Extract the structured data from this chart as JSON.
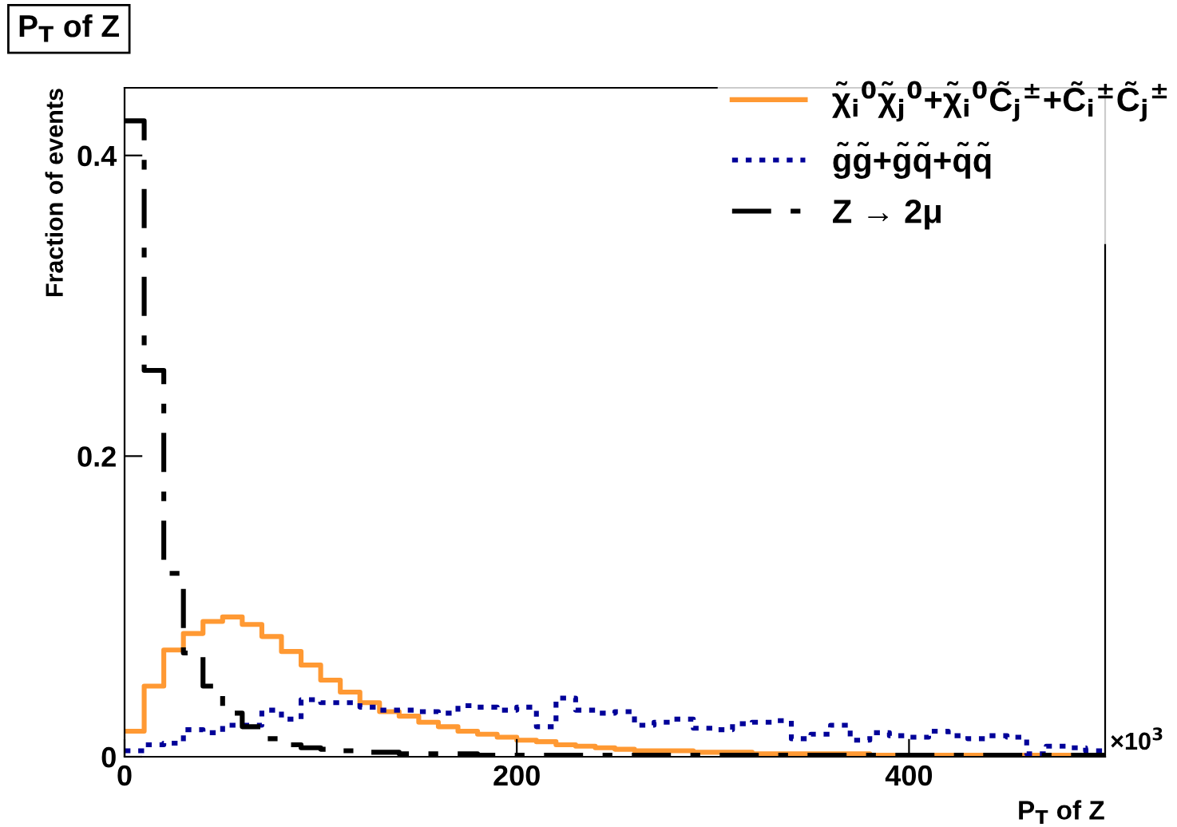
{
  "chart_data": {
    "type": "histogram",
    "title": "P$_{T}$ of Z",
    "xlabel": "P$_{T}$ of Z",
    "ylabel": "Fraction of events",
    "annotations": [
      "×10$^{3}$"
    ],
    "bins": [
      0,
      10,
      20,
      30,
      40,
      50,
      60,
      70,
      80,
      90,
      100,
      110,
      120,
      130,
      140,
      150,
      160,
      170,
      180,
      190,
      200,
      210,
      220,
      230,
      240,
      250,
      260,
      270,
      280,
      290,
      300,
      310,
      320,
      330,
      340,
      350,
      360,
      370,
      380,
      390,
      400,
      410,
      420,
      430,
      440,
      450,
      460,
      470,
      480,
      490,
      500
    ],
    "series": [
      {
        "name": "χ̃$_{i}$$^{0}$χ̃$_{j}$$^{0}$+χ̃$_{i}$$^{0}$C̃$_{j}$$^{±}$+C̃$_{i}$$^{±}$C̃$_{j}$$^{±}$",
        "color": "#ff9933",
        "line_style": "solid",
        "values": [
          0.017,
          0.047,
          0.071,
          0.082,
          0.09,
          0.093,
          0.088,
          0.08,
          0.07,
          0.061,
          0.051,
          0.043,
          0.036,
          0.03,
          0.027,
          0.023,
          0.02,
          0.017,
          0.015,
          0.013,
          0.011,
          0.01,
          0.008,
          0.007,
          0.006,
          0.005,
          0.004,
          0.004,
          0.004,
          0.003,
          0.003,
          0.003,
          0.002,
          0.002,
          0.002,
          0.002,
          0.002,
          0.002,
          0.001,
          0.001,
          0.001,
          0.001,
          0.001,
          0.001,
          0.001,
          0.001,
          0.001,
          0.001,
          0.001,
          0.001
        ]
      },
      {
        "name": "g̃g̃+g̃q̃+q̃q̃",
        "color": "#000099",
        "line_style": "dotted",
        "values": [
          0.004,
          0.008,
          0.009,
          0.018,
          0.016,
          0.021,
          0.021,
          0.031,
          0.025,
          0.038,
          0.036,
          0.036,
          0.033,
          0.031,
          0.031,
          0.03,
          0.029,
          0.034,
          0.033,
          0.031,
          0.033,
          0.02,
          0.039,
          0.031,
          0.029,
          0.03,
          0.021,
          0.023,
          0.025,
          0.019,
          0.018,
          0.022,
          0.023,
          0.024,
          0.012,
          0.015,
          0.021,
          0.011,
          0.016,
          0.014,
          0.013,
          0.017,
          0.014,
          0.012,
          0.014,
          0.013,
          0.002,
          0.007,
          0.006,
          0.004
        ]
      },
      {
        "name": "Z → 2μ",
        "color": "#000000",
        "line_style": "dashed",
        "values": [
          0.423,
          0.257,
          0.122,
          0.069,
          0.047,
          0.029,
          0.02,
          0.012,
          0.008,
          0.006,
          0.005,
          0.004,
          0.003,
          0.003,
          0.002,
          0.002,
          0.002,
          0.002,
          0.001,
          0.001,
          0.001,
          0.001,
          0.001,
          0.001,
          0.001,
          0.001,
          0.001,
          0.001,
          0.001,
          0.001,
          0.001,
          0.001,
          0.001,
          0.001,
          0.001,
          0.001,
          0.001,
          0.001,
          0.001,
          0.001,
          0.001,
          0.001,
          0.001,
          0.001,
          0.001,
          0.001,
          0.001,
          0.001,
          0.001,
          0.001
        ]
      }
    ],
    "xlim": [
      0,
      500
    ],
    "ylim": [
      0,
      0.445
    ],
    "xticks": [
      0,
      200,
      400
    ],
    "yticks": [
      0,
      0.2,
      0.4
    ],
    "grid": false,
    "legend": "top right"
  }
}
